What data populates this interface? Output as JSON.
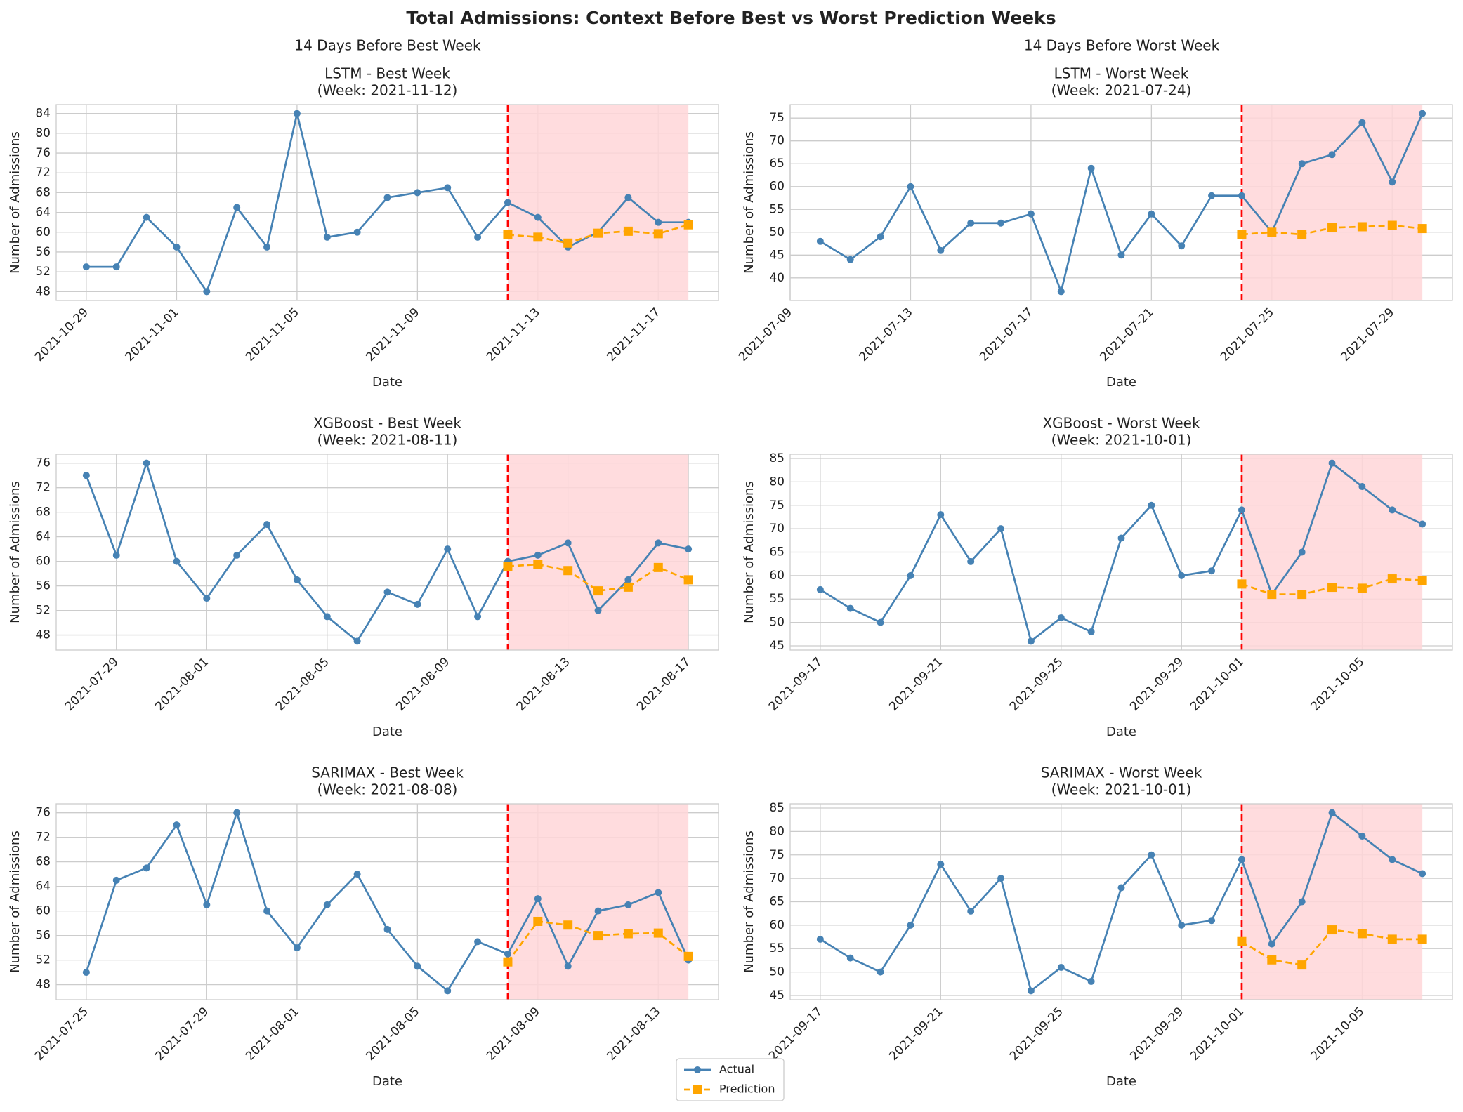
{
  "title": "Total Admissions: Context Before Best vs Worst Prediction Weeks",
  "column_titles": [
    "14 Days Before Best Week",
    "14 Days Before Worst Week"
  ],
  "chart_data": [
    {
      "type": "line",
      "title": "LSTM - Best Week",
      "subtitle": "(Week: 2021-11-12)",
      "xlabel": "Date",
      "ylabel": "Number of Admissions",
      "x": [
        "2021-10-29",
        "2021-10-30",
        "2021-10-31",
        "2021-11-01",
        "2021-11-02",
        "2021-11-03",
        "2021-11-04",
        "2021-11-05",
        "2021-11-06",
        "2021-11-07",
        "2021-11-08",
        "2021-11-09",
        "2021-11-10",
        "2021-11-11",
        "2021-11-12",
        "2021-11-13",
        "2021-11-14",
        "2021-11-15",
        "2021-11-16",
        "2021-11-17",
        "2021-11-18"
      ],
      "series": [
        {
          "name": "Actual",
          "color": "#4682b4",
          "marker": "circle",
          "dashed": false,
          "values": [
            53,
            53,
            63,
            57,
            48,
            65,
            57,
            84,
            59,
            60,
            67,
            68,
            69,
            59,
            66,
            63,
            57,
            60,
            67,
            62,
            62
          ]
        },
        {
          "name": "Prediction",
          "color": "#ffa500",
          "marker": "square",
          "dashed": true,
          "values": [
            null,
            null,
            null,
            null,
            null,
            null,
            null,
            null,
            null,
            null,
            null,
            null,
            null,
            null,
            59.5,
            59,
            57.8,
            59.8,
            60.2,
            59.7,
            61.5
          ]
        }
      ],
      "xlim": [
        "2021-10-28",
        "2021-11-19"
      ],
      "xticks": [
        "2021-10-29",
        "2021-11-01",
        "2021-11-05",
        "2021-11-09",
        "2021-11-13",
        "2021-11-17"
      ],
      "ylim": [
        46.2,
        85.8
      ],
      "yticks": [
        48,
        52,
        56,
        60,
        64,
        68,
        72,
        76,
        80,
        84
      ],
      "grid": true,
      "highlight_color": "#ffd6d8",
      "marker_line_color": "#ff0000"
    },
    {
      "type": "line",
      "title": "LSTM - Worst Week",
      "subtitle": "(Week: 2021-07-24)",
      "xlabel": "Date",
      "ylabel": "Number of Admissions",
      "x": [
        "2021-07-10",
        "2021-07-11",
        "2021-07-12",
        "2021-07-13",
        "2021-07-14",
        "2021-07-15",
        "2021-07-16",
        "2021-07-17",
        "2021-07-18",
        "2021-07-19",
        "2021-07-20",
        "2021-07-21",
        "2021-07-22",
        "2021-07-23",
        "2021-07-24",
        "2021-07-25",
        "2021-07-26",
        "2021-07-27",
        "2021-07-28",
        "2021-07-29",
        "2021-07-30"
      ],
      "series": [
        {
          "name": "Actual",
          "color": "#4682b4",
          "marker": "circle",
          "dashed": false,
          "values": [
            48,
            44,
            49,
            60,
            46,
            52,
            52,
            54,
            37,
            64,
            45,
            54,
            47,
            58,
            58,
            50,
            65,
            67,
            74,
            61,
            76
          ]
        },
        {
          "name": "Prediction",
          "color": "#ffa500",
          "marker": "square",
          "dashed": true,
          "values": [
            null,
            null,
            null,
            null,
            null,
            null,
            null,
            null,
            null,
            null,
            null,
            null,
            null,
            null,
            49.5,
            50,
            49.5,
            51,
            51.2,
            51.5,
            50.8
          ]
        }
      ],
      "xlim": [
        "2021-07-09",
        "2021-07-31"
      ],
      "xticks": [
        "2021-07-09",
        "2021-07-13",
        "2021-07-17",
        "2021-07-21",
        "2021-07-25",
        "2021-07-29"
      ],
      "ylim": [
        35.05,
        77.95
      ],
      "yticks": [
        40,
        45,
        50,
        55,
        60,
        65,
        70,
        75
      ],
      "grid": true,
      "highlight_color": "#ffd6d8",
      "marker_line_color": "#ff0000"
    },
    {
      "type": "line",
      "title": "XGBoost - Best Week",
      "subtitle": "(Week: 2021-08-11)",
      "xlabel": "Date",
      "ylabel": "Number of Admissions",
      "x": [
        "2021-07-28",
        "2021-07-29",
        "2021-07-30",
        "2021-07-31",
        "2021-08-01",
        "2021-08-02",
        "2021-08-03",
        "2021-08-04",
        "2021-08-05",
        "2021-08-06",
        "2021-08-07",
        "2021-08-08",
        "2021-08-09",
        "2021-08-10",
        "2021-08-11",
        "2021-08-12",
        "2021-08-13",
        "2021-08-14",
        "2021-08-15",
        "2021-08-16",
        "2021-08-17"
      ],
      "series": [
        {
          "name": "Actual",
          "color": "#4682b4",
          "marker": "circle",
          "dashed": false,
          "values": [
            74,
            61,
            76,
            60,
            54,
            61,
            66,
            57,
            51,
            47,
            55,
            53,
            62,
            51,
            60,
            61,
            63,
            52,
            57,
            63,
            62
          ]
        },
        {
          "name": "Prediction",
          "color": "#ffa500",
          "marker": "square",
          "dashed": true,
          "values": [
            null,
            null,
            null,
            null,
            null,
            null,
            null,
            null,
            null,
            null,
            null,
            null,
            null,
            null,
            59.2,
            59.5,
            58.5,
            55.2,
            55.8,
            59,
            57
          ]
        }
      ],
      "xlim": [
        "2021-07-27",
        "2021-08-18"
      ],
      "xticks": [
        "2021-07-29",
        "2021-08-01",
        "2021-08-05",
        "2021-08-09",
        "2021-08-13",
        "2021-08-17"
      ],
      "ylim": [
        45.55,
        77.45
      ],
      "yticks": [
        48,
        52,
        56,
        60,
        64,
        68,
        72,
        76
      ],
      "grid": true,
      "highlight_color": "#ffd6d8",
      "marker_line_color": "#ff0000"
    },
    {
      "type": "line",
      "title": "XGBoost - Worst Week",
      "subtitle": "(Week: 2021-10-01)",
      "xlabel": "Date",
      "ylabel": "Number of Admissions",
      "x": [
        "2021-09-17",
        "2021-09-18",
        "2021-09-19",
        "2021-09-20",
        "2021-09-21",
        "2021-09-22",
        "2021-09-23",
        "2021-09-24",
        "2021-09-25",
        "2021-09-26",
        "2021-09-27",
        "2021-09-28",
        "2021-09-29",
        "2021-09-30",
        "2021-10-01",
        "2021-10-02",
        "2021-10-03",
        "2021-10-04",
        "2021-10-05",
        "2021-10-06",
        "2021-10-07"
      ],
      "series": [
        {
          "name": "Actual",
          "color": "#4682b4",
          "marker": "circle",
          "dashed": false,
          "values": [
            57,
            53,
            50,
            60,
            73,
            63,
            70,
            46,
            51,
            48,
            68,
            75,
            60,
            61,
            74,
            56,
            65,
            84,
            79,
            74,
            71
          ]
        },
        {
          "name": "Prediction",
          "color": "#ffa500",
          "marker": "square",
          "dashed": true,
          "values": [
            null,
            null,
            null,
            null,
            null,
            null,
            null,
            null,
            null,
            null,
            null,
            null,
            null,
            null,
            58.2,
            56,
            56,
            57.5,
            57.3,
            59.3,
            59
          ]
        }
      ],
      "xlim": [
        "2021-09-16",
        "2021-10-08"
      ],
      "xticks": [
        "2021-09-17",
        "2021-09-21",
        "2021-09-25",
        "2021-09-29",
        "2021-10-01",
        "2021-10-05"
      ],
      "ylim": [
        44.1,
        85.9
      ],
      "yticks": [
        45,
        50,
        55,
        60,
        65,
        70,
        75,
        80,
        85
      ],
      "grid": true,
      "highlight_color": "#ffd6d8",
      "marker_line_color": "#ff0000"
    },
    {
      "type": "line",
      "title": "SARIMAX - Best Week",
      "subtitle": "(Week: 2021-08-08)",
      "xlabel": "Date",
      "ylabel": "Number of Admissions",
      "x": [
        "2021-07-25",
        "2021-07-26",
        "2021-07-27",
        "2021-07-28",
        "2021-07-29",
        "2021-07-30",
        "2021-07-31",
        "2021-08-01",
        "2021-08-02",
        "2021-08-03",
        "2021-08-04",
        "2021-08-05",
        "2021-08-06",
        "2021-08-07",
        "2021-08-08",
        "2021-08-09",
        "2021-08-10",
        "2021-08-11",
        "2021-08-12",
        "2021-08-13",
        "2021-08-14"
      ],
      "series": [
        {
          "name": "Actual",
          "color": "#4682b4",
          "marker": "circle",
          "dashed": false,
          "values": [
            50,
            65,
            67,
            74,
            61,
            76,
            60,
            54,
            61,
            66,
            57,
            51,
            47,
            55,
            53,
            62,
            51,
            60,
            61,
            63,
            52
          ]
        },
        {
          "name": "Prediction",
          "color": "#ffa500",
          "marker": "square",
          "dashed": true,
          "values": [
            null,
            null,
            null,
            null,
            null,
            null,
            null,
            null,
            null,
            null,
            null,
            null,
            null,
            null,
            51.7,
            58.3,
            57.7,
            56,
            56.3,
            56.4,
            52.6
          ]
        }
      ],
      "xlim": [
        "2021-07-24",
        "2021-08-15"
      ],
      "xticks": [
        "2021-07-25",
        "2021-07-29",
        "2021-08-01",
        "2021-08-05",
        "2021-08-09",
        "2021-08-13"
      ],
      "ylim": [
        45.55,
        77.45
      ],
      "yticks": [
        48,
        52,
        56,
        60,
        64,
        68,
        72,
        76
      ],
      "grid": true,
      "highlight_color": "#ffd6d8",
      "marker_line_color": "#ff0000"
    },
    {
      "type": "line",
      "title": "SARIMAX - Worst Week",
      "subtitle": "(Week: 2021-10-01)",
      "xlabel": "Date",
      "ylabel": "Number of Admissions",
      "x": [
        "2021-09-17",
        "2021-09-18",
        "2021-09-19",
        "2021-09-20",
        "2021-09-21",
        "2021-09-22",
        "2021-09-23",
        "2021-09-24",
        "2021-09-25",
        "2021-09-26",
        "2021-09-27",
        "2021-09-28",
        "2021-09-29",
        "2021-09-30",
        "2021-10-01",
        "2021-10-02",
        "2021-10-03",
        "2021-10-04",
        "2021-10-05",
        "2021-10-06",
        "2021-10-07"
      ],
      "series": [
        {
          "name": "Actual",
          "color": "#4682b4",
          "marker": "circle",
          "dashed": false,
          "values": [
            57,
            53,
            50,
            60,
            73,
            63,
            70,
            46,
            51,
            48,
            68,
            75,
            60,
            61,
            74,
            56,
            65,
            84,
            79,
            74,
            71
          ]
        },
        {
          "name": "Prediction",
          "color": "#ffa500",
          "marker": "square",
          "dashed": true,
          "values": [
            null,
            null,
            null,
            null,
            null,
            null,
            null,
            null,
            null,
            null,
            null,
            null,
            null,
            null,
            56.5,
            52.6,
            51.5,
            59,
            58.2,
            57,
            57
          ]
        }
      ],
      "xlim": [
        "2021-09-16",
        "2021-10-08"
      ],
      "xticks": [
        "2021-09-17",
        "2021-09-21",
        "2021-09-25",
        "2021-09-29",
        "2021-10-01",
        "2021-10-05"
      ],
      "ylim": [
        44.1,
        85.9
      ],
      "yticks": [
        45,
        50,
        55,
        60,
        65,
        70,
        75,
        80,
        85
      ],
      "grid": true,
      "highlight_color": "#ffd6d8",
      "marker_line_color": "#ff0000"
    }
  ]
}
